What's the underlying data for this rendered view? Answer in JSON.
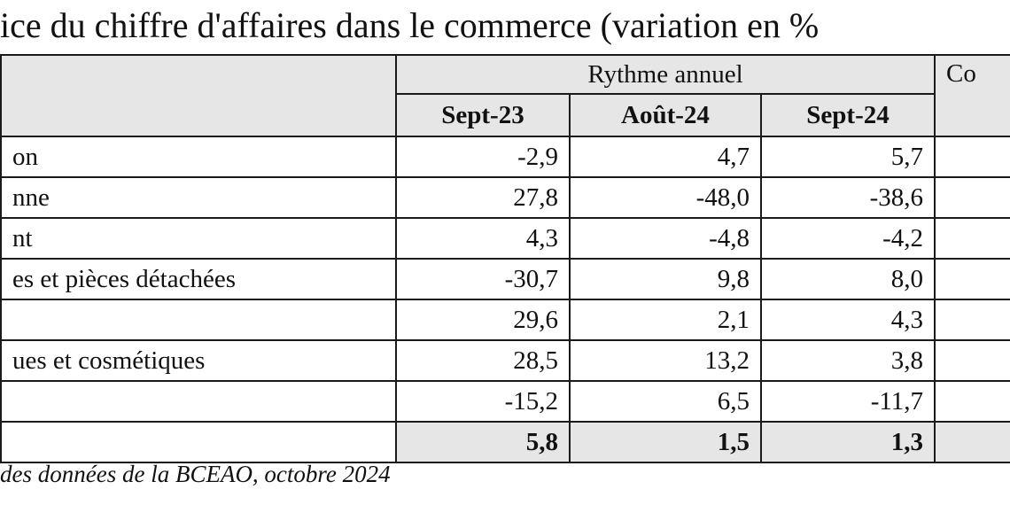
{
  "title": "ice du chiffre d'affaires dans le commerce (variation en %",
  "table": {
    "group_header": "Rythme annuel",
    "next_group_header": "Co",
    "columns": [
      "Sept-23",
      "Août-24",
      "Sept-24"
    ],
    "rows": [
      {
        "label": "on",
        "values": [
          "-2,9",
          "4,7",
          "5,7"
        ]
      },
      {
        "label": "nne",
        "values": [
          "27,8",
          "-48,0",
          "-38,6"
        ]
      },
      {
        "label": "nt",
        "values": [
          "4,3",
          "-4,8",
          "-4,2"
        ]
      },
      {
        "label": "es et pièces détachées",
        "values": [
          "-30,7",
          "9,8",
          "8,0"
        ]
      },
      {
        "label": "",
        "values": [
          "29,6",
          "2,1",
          "4,3"
        ]
      },
      {
        "label": "ues et cosmétiques",
        "values": [
          "28,5",
          "13,2",
          "3,8"
        ]
      },
      {
        "label": "",
        "values": [
          "-15,2",
          "6,5",
          "-11,7"
        ]
      }
    ],
    "total_row": {
      "label": "",
      "values": [
        "5,8",
        "1,5",
        "1,3"
      ]
    }
  },
  "source": "des données de la BCEAO, octobre 2024",
  "colors": {
    "header_bg": "#e6e6e6",
    "border": "#1a1a1a"
  }
}
